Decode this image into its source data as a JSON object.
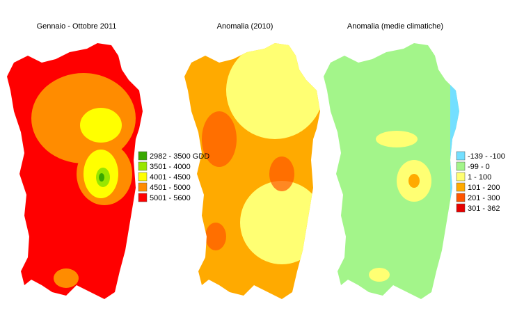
{
  "maps": [
    {
      "title": "Gennaio - Ottobre 2011",
      "legend": [
        {
          "label": "2982 - 3500 GDD",
          "color": "#38a800"
        },
        {
          "label": "3501 - 4000",
          "color": "#98e600"
        },
        {
          "label": "4001 - 4500",
          "color": "#ffff00"
        },
        {
          "label": "4501 - 5000",
          "color": "#ff8c00"
        },
        {
          "label": "5001 - 5600",
          "color": "#ff0000"
        }
      ]
    },
    {
      "title": "Anomalia (2010)"
    },
    {
      "title": "Anomalia (medie climatiche)",
      "legend": [
        {
          "label": "-139 - -100",
          "color": "#73dfff"
        },
        {
          "label": "-99 - 0",
          "color": "#a3f58a"
        },
        {
          "label": "1 - 100",
          "color": "#ffff73"
        },
        {
          "label": "101 - 200",
          "color": "#ffaa00"
        },
        {
          "label": "201 - 300",
          "color": "#ff5500"
        },
        {
          "label": "301 - 362",
          "color": "#e60000"
        }
      ]
    }
  ]
}
